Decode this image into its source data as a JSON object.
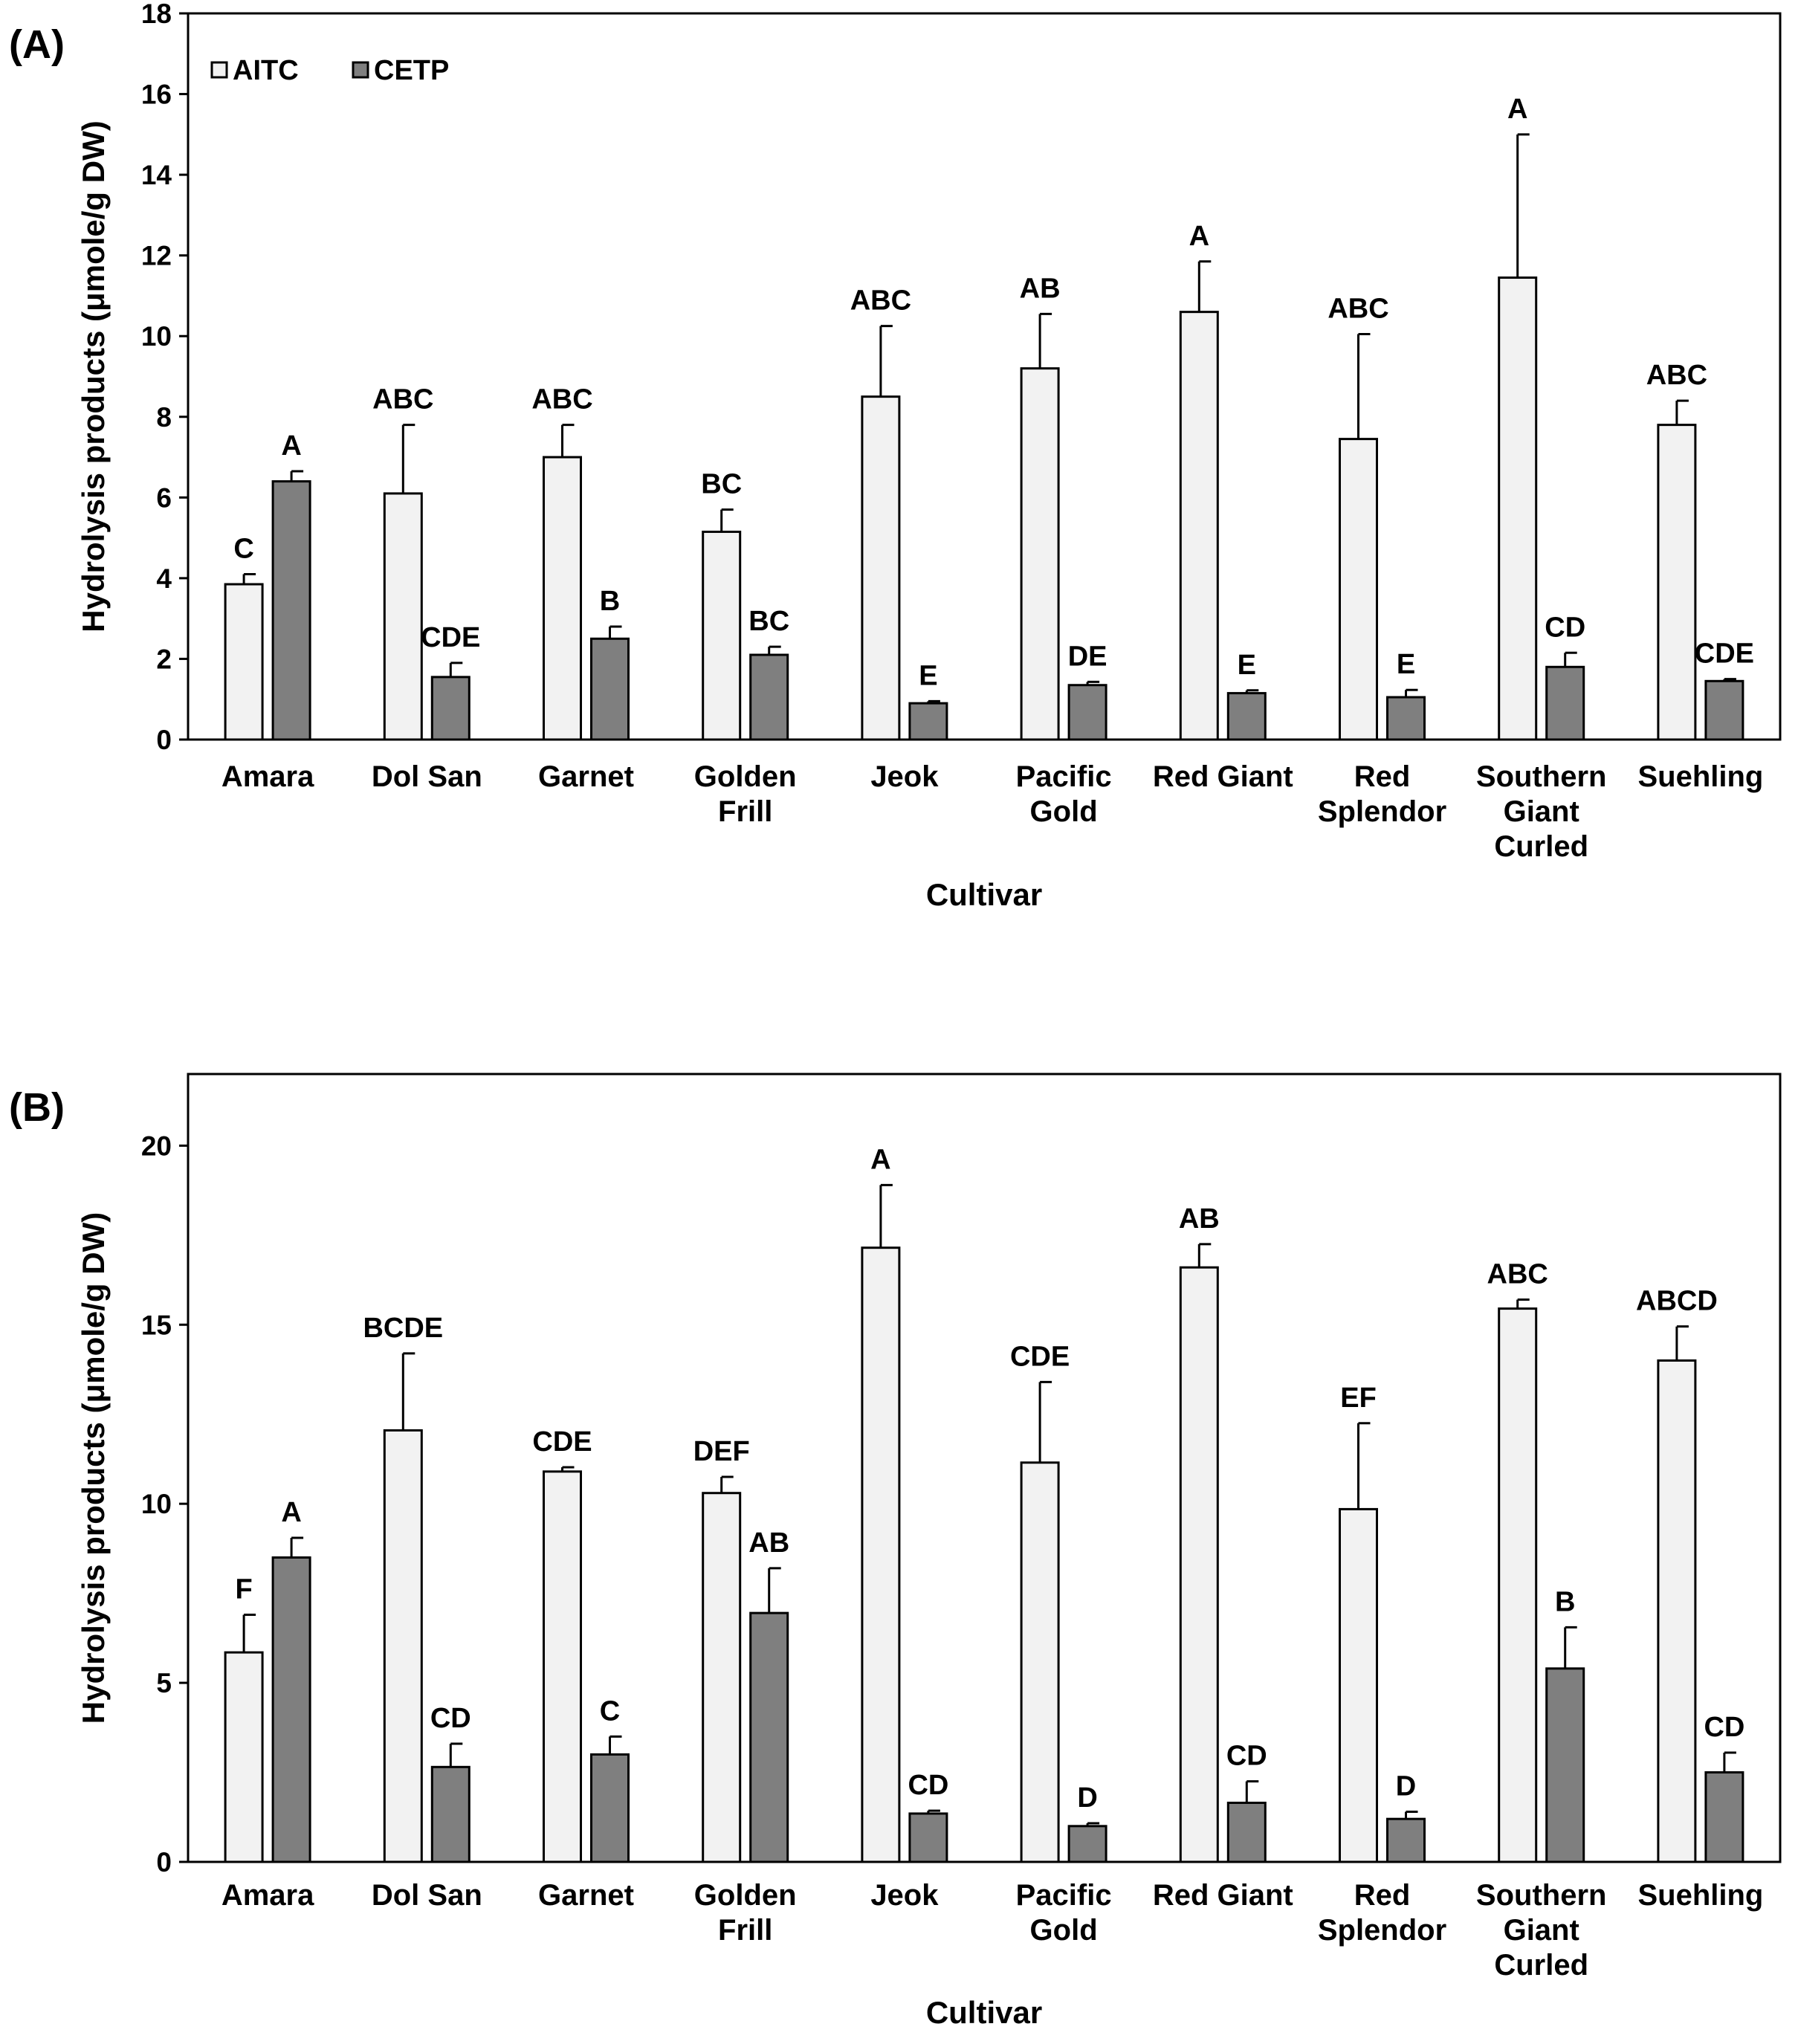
{
  "colors": {
    "aitc_fill": "#f2f2f2",
    "cetp_fill": "#7f7f7f",
    "outline": "#000000",
    "background": "#ffffff"
  },
  "chart_data": [
    {
      "panel_label": "(A)",
      "type": "bar",
      "title": "",
      "xlabel": "Cultivar",
      "ylabel": "Hydrolysis products (μmole/g DW)",
      "ylim": [
        0,
        18
      ],
      "yticks": [
        0,
        2,
        4,
        6,
        8,
        10,
        12,
        14,
        16,
        18
      ],
      "grid": false,
      "legend": {
        "placement": "top-left",
        "entries": [
          "AITC",
          "CETP"
        ]
      },
      "categories": [
        [
          "Amara"
        ],
        [
          "Dol San"
        ],
        [
          "Garnet"
        ],
        [
          "Golden",
          "Frill"
        ],
        [
          "Jeok"
        ],
        [
          "Pacific",
          "Gold"
        ],
        [
          "Red Giant"
        ],
        [
          "Red",
          "Splendor"
        ],
        [
          "Southern",
          "Giant",
          "Curled"
        ],
        [
          "Suehling"
        ]
      ],
      "series": [
        {
          "name": "AITC",
          "values": [
            3.85,
            6.1,
            7.0,
            5.15,
            8.5,
            9.2,
            10.6,
            7.45,
            11.45,
            7.8
          ],
          "errors": [
            0.25,
            1.7,
            0.8,
            0.55,
            1.75,
            1.35,
            1.25,
            2.6,
            3.55,
            0.6
          ],
          "letters": [
            "C",
            "ABC",
            "ABC",
            "BC",
            "ABC",
            "AB",
            "A",
            "ABC",
            "A",
            "ABC"
          ]
        },
        {
          "name": "CETP",
          "values": [
            6.4,
            1.55,
            2.5,
            2.1,
            0.9,
            1.35,
            1.15,
            1.05,
            1.8,
            1.45
          ],
          "errors": [
            0.25,
            0.35,
            0.3,
            0.2,
            0.05,
            0.08,
            0.07,
            0.18,
            0.35,
            0.05
          ],
          "letters": [
            "A",
            "CDE",
            "B",
            "BC",
            "E",
            "DE",
            "E",
            "E",
            "CD",
            "CDE"
          ]
        }
      ]
    },
    {
      "panel_label": "(B)",
      "type": "bar",
      "title": "",
      "xlabel": "Cultivar",
      "ylabel": "Hydrolysis products (μmole/g DW)",
      "ylim": [
        0,
        22
      ],
      "yticks": [
        0,
        5,
        10,
        15,
        20
      ],
      "grid": false,
      "legend": null,
      "categories": [
        [
          "Amara"
        ],
        [
          "Dol San"
        ],
        [
          "Garnet"
        ],
        [
          "Golden",
          "Frill"
        ],
        [
          "Jeok"
        ],
        [
          "Pacific",
          "Gold"
        ],
        [
          "Red Giant"
        ],
        [
          "Red",
          "Splendor"
        ],
        [
          "Southern",
          "Giant",
          "Curled"
        ],
        [
          "Suehling"
        ]
      ],
      "series": [
        {
          "name": "AITC",
          "values": [
            5.85,
            12.05,
            10.9,
            10.3,
            17.15,
            11.15,
            16.6,
            9.85,
            15.45,
            14.0
          ],
          "errors": [
            1.05,
            2.15,
            0.12,
            0.45,
            1.75,
            2.25,
            0.65,
            2.4,
            0.25,
            0.95
          ],
          "letters": [
            "F",
            "BCDE",
            "CDE",
            "DEF",
            "A",
            "CDE",
            "AB",
            "EF",
            "ABC",
            "ABCD"
          ]
        },
        {
          "name": "CETP",
          "values": [
            8.5,
            2.65,
            3.0,
            6.95,
            1.35,
            1.0,
            1.65,
            1.2,
            5.4,
            2.5
          ],
          "errors": [
            0.55,
            0.65,
            0.5,
            1.25,
            0.08,
            0.08,
            0.6,
            0.2,
            1.15,
            0.55
          ],
          "letters": [
            "A",
            "CD",
            "C",
            "AB",
            "CD",
            "D",
            "CD",
            "D",
            "B",
            "CD"
          ]
        }
      ]
    }
  ]
}
